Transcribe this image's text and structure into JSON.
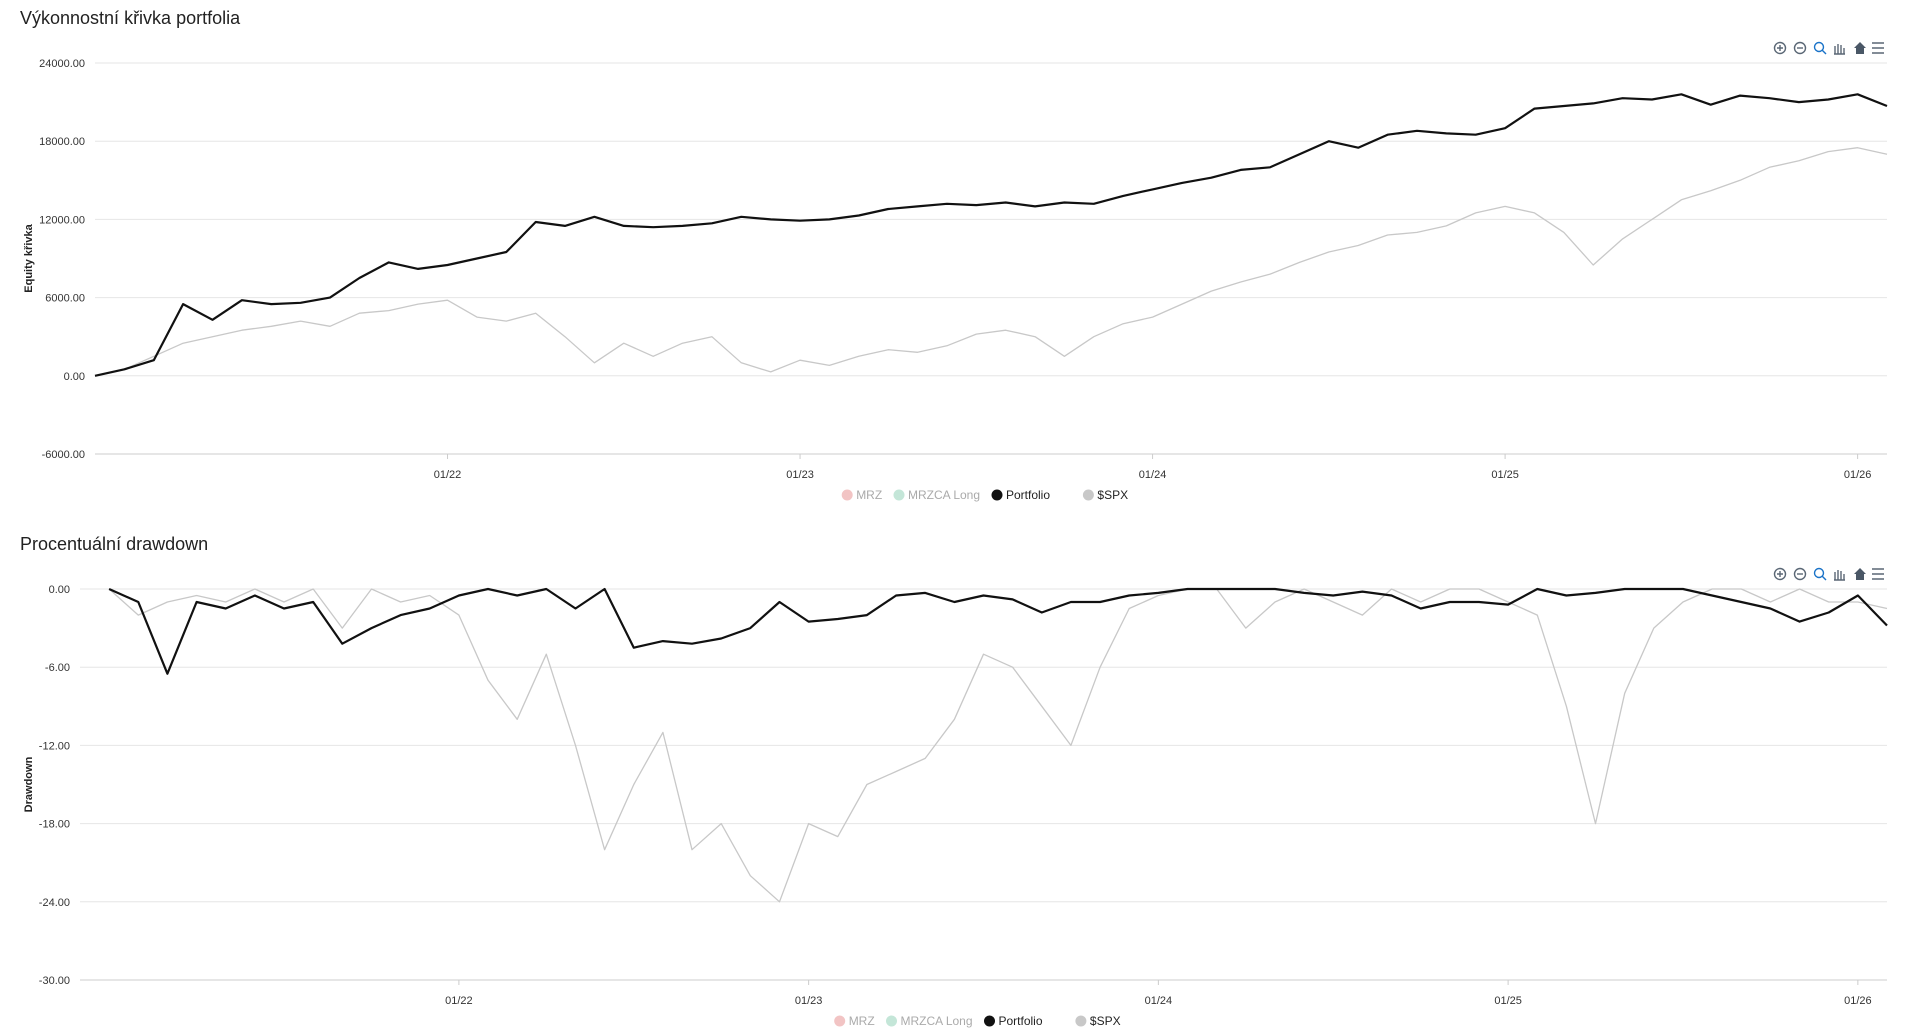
{
  "chart_data": [
    {
      "type": "line",
      "title": "Výkonnostní křivka portfolia",
      "y_label": "Equity křivka",
      "x": [
        "2021-01",
        "2021-02",
        "2021-03",
        "2021-04",
        "2021-05",
        "2021-06",
        "2021-07",
        "2021-08",
        "2021-09",
        "2021-10",
        "2021-11",
        "2021-12",
        "2022-01",
        "2022-02",
        "2022-03",
        "2022-04",
        "2022-05",
        "2022-06",
        "2022-07",
        "2022-08",
        "2022-09",
        "2022-10",
        "2022-11",
        "2022-12",
        "2023-01",
        "2023-02",
        "2023-03",
        "2023-04",
        "2023-05",
        "2023-06",
        "2023-07",
        "2023-08",
        "2023-09",
        "2023-10",
        "2023-11",
        "2023-12",
        "2024-01",
        "2024-02",
        "2024-03",
        "2024-04",
        "2024-05",
        "2024-06",
        "2024-07",
        "2024-08",
        "2024-09",
        "2024-10",
        "2024-11",
        "2024-12",
        "2025-01",
        "2025-02",
        "2025-03",
        "2025-04",
        "2025-05",
        "2025-06",
        "2025-07",
        "2025-08",
        "2025-09",
        "2025-10",
        "2025-11",
        "2025-12",
        "2026-01",
        "2026-02"
      ],
      "xlim": [
        "2021-01",
        "2026-02"
      ],
      "xticks": [
        {
          "value": "2022-01",
          "label": "01/22"
        },
        {
          "value": "2023-01",
          "label": "01/23"
        },
        {
          "value": "2024-01",
          "label": "01/24"
        },
        {
          "value": "2025-01",
          "label": "01/25"
        },
        {
          "value": "2026-01",
          "label": "01/26"
        }
      ],
      "ylim": [
        -6000,
        24000
      ],
      "yticks": [
        {
          "value": -6000,
          "label": "-6000.00"
        },
        {
          "value": 0,
          "label": "0.00"
        },
        {
          "value": 6000,
          "label": "6000.00"
        },
        {
          "value": 12000,
          "label": "12000.00"
        },
        {
          "value": 18000,
          "label": "18000.00"
        },
        {
          "value": 24000,
          "label": "24000.00"
        }
      ],
      "grid": true,
      "series": [
        {
          "name": "MRZ",
          "color": "#f2c4c4",
          "visible": false
        },
        {
          "name": "MRZCA Long",
          "color": "#c4e6d8",
          "visible": false
        },
        {
          "name": "Portfolio",
          "color": "#111111",
          "visible": true,
          "values": [
            0,
            500,
            1200,
            5500,
            4300,
            5800,
            5500,
            5600,
            6000,
            7500,
            8700,
            8200,
            8500,
            9000,
            9500,
            11800,
            11500,
            12200,
            11500,
            11400,
            11500,
            11700,
            12200,
            12000,
            11900,
            12000,
            12300,
            12800,
            13000,
            13200,
            13100,
            13300,
            13000,
            13300,
            13200,
            13800,
            14300,
            14800,
            15200,
            15800,
            16000,
            17000,
            18000,
            17500,
            18500,
            18800,
            18600,
            18500,
            19000,
            20500,
            20700,
            20900,
            21300,
            21200,
            21600,
            20800,
            21500,
            21300,
            21000,
            21200,
            21600,
            20700
          ]
        },
        {
          "name": "$SPX",
          "color": "#c8c8c8",
          "visible": true,
          "values": [
            0,
            500,
            1500,
            2500,
            3000,
            3500,
            3800,
            4200,
            3800,
            4800,
            5000,
            5500,
            5800,
            4500,
            4200,
            4800,
            3000,
            1000,
            2500,
            1500,
            2500,
            3000,
            1000,
            300,
            1200,
            800,
            1500,
            2000,
            1800,
            2300,
            3200,
            3500,
            3000,
            1500,
            3000,
            4000,
            4500,
            5500,
            6500,
            7200,
            7800,
            8700,
            9500,
            10000,
            10800,
            11000,
            11500,
            12500,
            13000,
            12500,
            11000,
            8500,
            10500,
            12000,
            13500,
            14200,
            15000,
            16000,
            16500,
            17200,
            17500,
            17000
          ]
        }
      ]
    },
    {
      "type": "line",
      "title": "Procentuální drawdown",
      "y_label": "Drawdown",
      "x": [
        "2021-01",
        "2021-02",
        "2021-03",
        "2021-04",
        "2021-05",
        "2021-06",
        "2021-07",
        "2021-08",
        "2021-09",
        "2021-10",
        "2021-11",
        "2021-12",
        "2022-01",
        "2022-02",
        "2022-03",
        "2022-04",
        "2022-05",
        "2022-06",
        "2022-07",
        "2022-08",
        "2022-09",
        "2022-10",
        "2022-11",
        "2022-12",
        "2023-01",
        "2023-02",
        "2023-03",
        "2023-04",
        "2023-05",
        "2023-06",
        "2023-07",
        "2023-08",
        "2023-09",
        "2023-10",
        "2023-11",
        "2023-12",
        "2024-01",
        "2024-02",
        "2024-03",
        "2024-04",
        "2024-05",
        "2024-06",
        "2024-07",
        "2024-08",
        "2024-09",
        "2024-10",
        "2024-11",
        "2024-12",
        "2025-01",
        "2025-02",
        "2025-03",
        "2025-04",
        "2025-05",
        "2025-06",
        "2025-07",
        "2025-08",
        "2025-09",
        "2025-10",
        "2025-11",
        "2025-12",
        "2026-01",
        "2026-02"
      ],
      "xlim": [
        "2020-12",
        "2026-02"
      ],
      "xticks": [
        {
          "value": "2022-01",
          "label": "01/22"
        },
        {
          "value": "2023-01",
          "label": "01/23"
        },
        {
          "value": "2024-01",
          "label": "01/24"
        },
        {
          "value": "2025-01",
          "label": "01/25"
        },
        {
          "value": "2026-01",
          "label": "01/26"
        }
      ],
      "ylim": [
        -30,
        0
      ],
      "yticks": [
        {
          "value": -30,
          "label": "-30.00"
        },
        {
          "value": -24,
          "label": "-24.00"
        },
        {
          "value": -18,
          "label": "-18.00"
        },
        {
          "value": -12,
          "label": "-12.00"
        },
        {
          "value": -6,
          "label": "-6.00"
        },
        {
          "value": 0,
          "label": "0.00"
        }
      ],
      "grid": true,
      "series": [
        {
          "name": "MRZ",
          "color": "#f2c4c4",
          "visible": false
        },
        {
          "name": "MRZCA Long",
          "color": "#c4e6d8",
          "visible": false
        },
        {
          "name": "Portfolio",
          "color": "#111111",
          "visible": true,
          "values": [
            0,
            -1,
            -6.5,
            -1,
            -1.5,
            -0.5,
            -1.5,
            -1,
            -4.2,
            -3,
            -2,
            -1.5,
            -0.5,
            0,
            -0.5,
            0,
            -1.5,
            0,
            -4.5,
            -4,
            -4.2,
            -3.8,
            -3,
            -1,
            -2.5,
            -2.3,
            -2,
            -0.5,
            -0.3,
            -1,
            -0.5,
            -0.8,
            -1.8,
            -1,
            -1,
            -0.5,
            -0.3,
            0,
            0,
            0,
            0,
            -0.3,
            -0.5,
            -0.2,
            -0.5,
            -1.5,
            -1,
            -1,
            -1.2,
            0,
            -0.5,
            -0.3,
            0,
            0,
            0,
            -0.5,
            -1,
            -1.5,
            -2.5,
            -1.8,
            -0.5,
            -2.8
          ]
        },
        {
          "name": "$SPX",
          "color": "#c8c8c8",
          "visible": true,
          "values": [
            0,
            -2,
            -1,
            -0.5,
            -1,
            0,
            -1,
            0,
            -3,
            0,
            -1,
            -0.5,
            -2,
            -7,
            -10,
            -5,
            -12,
            -20,
            -15,
            -11,
            -20,
            -18,
            -22,
            -24,
            -18,
            -19,
            -15,
            -14,
            -13,
            -10,
            -5,
            -6,
            -9,
            -12,
            -6,
            -1.5,
            -0.5,
            0,
            0,
            -3,
            -1,
            0,
            -1,
            -2,
            0,
            -1,
            0,
            0,
            -1,
            -2,
            -9,
            -18,
            -8,
            -3,
            -1,
            0,
            0,
            -1,
            0,
            -1,
            -1,
            -1.5
          ]
        }
      ]
    }
  ]
}
